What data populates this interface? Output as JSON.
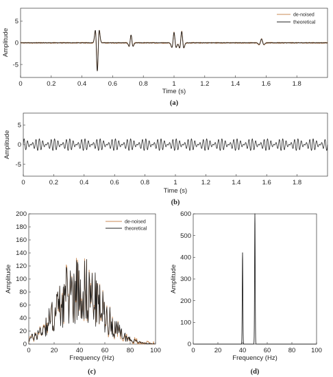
{
  "colors": {
    "denoised": "#c98a56",
    "theoretical": "#222222",
    "axis": "#333333"
  },
  "chart_data": [
    {
      "id": "a",
      "type": "line",
      "caption": "(a)",
      "xlabel": "Time (s)",
      "ylabel": "Amplitude",
      "xlim": [
        0,
        2
      ],
      "ylim": [
        -8,
        8
      ],
      "xticks": [
        0,
        0.2,
        0.4,
        0.6,
        0.8,
        1,
        1.2,
        1.4,
        1.6,
        1.8
      ],
      "yticks": [
        -5,
        0,
        5
      ],
      "legend": {
        "location": "top-right"
      },
      "series": [
        {
          "name": "de-noised",
          "noise": 0.12
        },
        {
          "name": "theoretical"
        }
      ],
      "events": [
        {
          "t": 0.5,
          "amp": 6.5,
          "freq": 30
        },
        {
          "t": 0.72,
          "amp": 1.8,
          "freq": 30
        },
        {
          "t": 1.0,
          "amp": 2.4,
          "freq": 28
        },
        {
          "t": 1.05,
          "amp": 2.6,
          "freq": 28
        },
        {
          "t": 1.57,
          "amp": 0.9,
          "freq": 25
        }
      ]
    },
    {
      "id": "b",
      "type": "line",
      "caption": "(b)",
      "xlabel": "Time (s)",
      "ylabel": "Amplitude",
      "xlim": [
        0,
        2
      ],
      "ylim": [
        -8,
        8
      ],
      "xticks": [
        0,
        0.2,
        0.4,
        0.6,
        0.8,
        1,
        1.2,
        1.4,
        1.6,
        1.8
      ],
      "yticks": [
        -5,
        0,
        5
      ],
      "signal": {
        "components": [
          {
            "freq": 40,
            "amp": 0.75
          },
          {
            "freq": 50,
            "amp": 0.75
          }
        ]
      }
    },
    {
      "id": "c",
      "type": "line",
      "caption": "(c)",
      "xlabel": "Frequency (Hz)",
      "ylabel": "Amplitude",
      "xlim": [
        0,
        100
      ],
      "ylim": [
        0,
        200
      ],
      "xticks": [
        0,
        20,
        40,
        60,
        80,
        100
      ],
      "yticks": [
        0,
        20,
        40,
        60,
        80,
        100,
        120,
        140,
        160,
        180,
        200
      ],
      "legend": {
        "location": "top-right"
      },
      "series": [
        {
          "name": "de-noised"
        },
        {
          "name": "theoretical"
        }
      ],
      "envelope": {
        "peak_x": 40,
        "peak_y": 90,
        "width": 18
      }
    },
    {
      "id": "d",
      "type": "line",
      "caption": "(d)",
      "xlabel": "Frequency (Hz)",
      "ylabel": "Amplitude",
      "xlim": [
        0,
        100
      ],
      "ylim": [
        0,
        600
      ],
      "xticks": [
        0,
        20,
        40,
        60,
        80,
        100
      ],
      "yticks": [
        0,
        100,
        200,
        300,
        400,
        500,
        600
      ],
      "peaks": [
        {
          "x": 40,
          "y": 420
        },
        {
          "x": 50,
          "y": 600
        }
      ]
    }
  ]
}
